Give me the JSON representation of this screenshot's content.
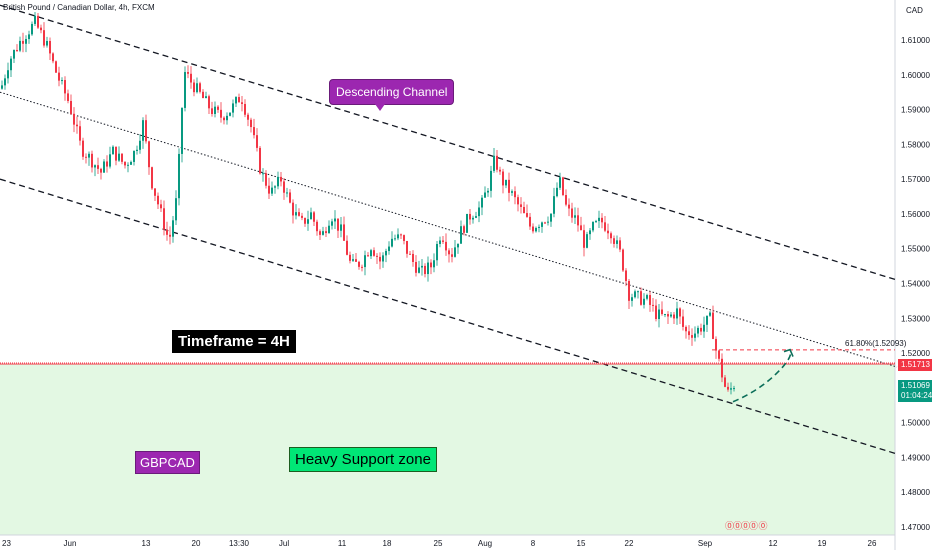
{
  "header": {
    "title": "British Pound / Canadian Dollar, 4h, FXCM"
  },
  "currency": "CAD",
  "annotations": {
    "channel_label": "Descending Channel",
    "timeframe_label": "Timeframe = 4H",
    "pair_label": "GBPCAD",
    "support_label": "Heavy Support zone",
    "fib_label": "61.80%(1.52093)"
  },
  "price_tags": {
    "level_price": "1.51713",
    "current_price": "1.51069",
    "countdown": "01:04:24"
  },
  "event_markers": "⓪⓪⓪⓪ ⓪",
  "chart_data": {
    "type": "candlestick",
    "x_ticks": [
      "23",
      "Jun",
      "13",
      "20",
      "13:30",
      "Jul",
      "11",
      "18",
      "25",
      "Aug",
      "8",
      "15",
      "22",
      "Sep",
      "12",
      "19",
      "26"
    ],
    "y_ticks": [
      "1.61000",
      "1.60000",
      "1.59000",
      "1.58000",
      "1.57000",
      "1.56000",
      "1.55000",
      "1.54000",
      "1.53000",
      "1.52000",
      "1.51000",
      "1.50000",
      "1.49000",
      "1.48000",
      "1.47000"
    ],
    "ylim": [
      1.466,
      1.625
    ],
    "path_points": [
      [
        0,
        1.596
      ],
      [
        8,
        1.604
      ],
      [
        20,
        1.61
      ],
      [
        34,
        1.615
      ],
      [
        45,
        1.609
      ],
      [
        56,
        1.6
      ],
      [
        68,
        1.592
      ],
      [
        80,
        1.579
      ],
      [
        92,
        1.575
      ],
      [
        100,
        1.572
      ],
      [
        112,
        1.578
      ],
      [
        124,
        1.574
      ],
      [
        134,
        1.578
      ],
      [
        142,
        1.586
      ],
      [
        150,
        1.57
      ],
      [
        160,
        1.56
      ],
      [
        168,
        1.552
      ],
      [
        176,
        1.565
      ],
      [
        183,
        1.601
      ],
      [
        190,
        1.598
      ],
      [
        200,
        1.594
      ],
      [
        210,
        1.59
      ],
      [
        220,
        1.588
      ],
      [
        230,
        1.59
      ],
      [
        240,
        1.594
      ],
      [
        250,
        1.585
      ],
      [
        260,
        1.572
      ],
      [
        270,
        1.566
      ],
      [
        280,
        1.57
      ],
      [
        290,
        1.562
      ],
      [
        300,
        1.557
      ],
      [
        310,
        1.56
      ],
      [
        320,
        1.553
      ],
      [
        330,
        1.56
      ],
      [
        340,
        1.555
      ],
      [
        350,
        1.545
      ],
      [
        360,
        1.546
      ],
      [
        370,
        1.551
      ],
      [
        380,
        1.546
      ],
      [
        390,
        1.553
      ],
      [
        400,
        1.553
      ],
      [
        410,
        1.547
      ],
      [
        420,
        1.543
      ],
      [
        430,
        1.545
      ],
      [
        440,
        1.555
      ],
      [
        450,
        1.548
      ],
      [
        460,
        1.555
      ],
      [
        470,
        1.56
      ],
      [
        480,
        1.562
      ],
      [
        488,
        1.569
      ],
      [
        494,
        1.576
      ],
      [
        500,
        1.57
      ],
      [
        510,
        1.566
      ],
      [
        520,
        1.561
      ],
      [
        530,
        1.556
      ],
      [
        540,
        1.558
      ],
      [
        550,
        1.56
      ],
      [
        558,
        1.57
      ],
      [
        566,
        1.561
      ],
      [
        576,
        1.558
      ],
      [
        584,
        1.551
      ],
      [
        592,
        1.556
      ],
      [
        600,
        1.558
      ],
      [
        610,
        1.555
      ],
      [
        620,
        1.548
      ],
      [
        628,
        1.537
      ],
      [
        636,
        1.536
      ],
      [
        646,
        1.535
      ],
      [
        656,
        1.531
      ],
      [
        666,
        1.53
      ],
      [
        676,
        1.532
      ],
      [
        684,
        1.526
      ],
      [
        694,
        1.526
      ],
      [
        702,
        1.528
      ],
      [
        710,
        1.53
      ],
      [
        714,
        1.522
      ],
      [
        720,
        1.515
      ],
      [
        726,
        1.508
      ],
      [
        733,
        1.511
      ]
    ],
    "channel": {
      "upper": [
        [
          0,
          1.62
        ],
        [
          897,
          1.541
        ]
      ],
      "middle": [
        [
          0,
          1.595
        ],
        [
          897,
          1.516
        ]
      ],
      "lower": [
        [
          0,
          1.57
        ],
        [
          897,
          1.491
        ]
      ]
    },
    "fib_level": 1.52093,
    "level_line": 1.51713,
    "support_zone": [
      1.466,
      1.51713
    ],
    "projection": [
      [
        733,
        1.506
      ],
      [
        758,
        1.509
      ],
      [
        776,
        1.514
      ],
      [
        790,
        1.521
      ]
    ],
    "colors": {
      "up": "#089981",
      "down": "#f23645",
      "support": "#e3f8e3",
      "channel": "#131722"
    }
  }
}
